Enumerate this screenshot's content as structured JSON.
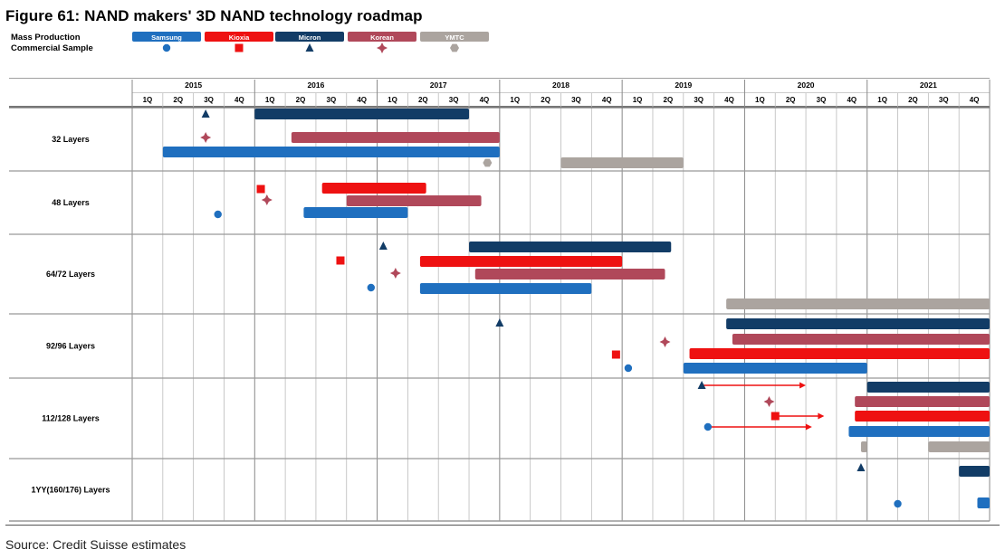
{
  "title": "Figure 61: NAND makers' 3D NAND technology roadmap",
  "source": "Source: Credit Suisse estimates",
  "legend": {
    "mass_production_label": "Mass Production",
    "commercial_sample_label": "Commercial Sample"
  },
  "chart_data": {
    "type": "gantt",
    "title": "Figure 61: NAND makers' 3D NAND technology roadmap",
    "x_axis": {
      "years": [
        "2015",
        "2016",
        "2017",
        "2018",
        "2019",
        "2020",
        "2021"
      ],
      "quarters": [
        "1Q",
        "2Q",
        "3Q",
        "4Q"
      ],
      "range": [
        "2015 1Q",
        "2021 4Q"
      ]
    },
    "makers": [
      {
        "name": "Samsung",
        "color": "#1f6fbf",
        "sample_marker": "circle"
      },
      {
        "name": "Kioxia",
        "color": "#ee1111",
        "sample_marker": "square"
      },
      {
        "name": "Micron",
        "color": "#123c66",
        "sample_marker": "triangle"
      },
      {
        "name": "Korean",
        "color": "#b0485a",
        "sample_marker": "diamond"
      },
      {
        "name": "YMTC",
        "color": "#aba49f",
        "sample_marker": "hexagon"
      }
    ],
    "categories": [
      "32 Layers",
      "48 Layers",
      "64/72 Layers",
      "92/96 Layers",
      "112/128 Layers",
      "1YY(160/176) Layers"
    ],
    "mass_production": [
      {
        "layer": "32 Layers",
        "maker": "Micron",
        "start": 2016.0,
        "end": 2017.75
      },
      {
        "layer": "32 Layers",
        "maker": "Korean",
        "start": 2016.3,
        "end": 2018.0
      },
      {
        "layer": "32 Layers",
        "maker": "Samsung",
        "start": 2015.25,
        "end": 2018.0
      },
      {
        "layer": "32 Layers",
        "maker": "YMTC",
        "start": 2018.5,
        "end": 2019.5
      },
      {
        "layer": "48 Layers",
        "maker": "Kioxia",
        "start": 2016.55,
        "end": 2017.4
      },
      {
        "layer": "48 Layers",
        "maker": "Korean",
        "start": 2016.75,
        "end": 2017.85
      },
      {
        "layer": "48 Layers",
        "maker": "Samsung",
        "start": 2016.4,
        "end": 2017.25
      },
      {
        "layer": "64/72 Layers",
        "maker": "Micron",
        "start": 2017.75,
        "end": 2019.4
      },
      {
        "layer": "64/72 Layers",
        "maker": "Kioxia",
        "start": 2017.35,
        "end": 2019.0
      },
      {
        "layer": "64/72 Layers",
        "maker": "Korean",
        "start": 2017.8,
        "end": 2019.35
      },
      {
        "layer": "64/72 Layers",
        "maker": "Samsung",
        "start": 2017.35,
        "end": 2018.75
      },
      {
        "layer": "64/72 Layers",
        "maker": "YMTC",
        "start": 2019.85,
        "end": 2022.0
      },
      {
        "layer": "92/96 Layers",
        "maker": "Micron",
        "start": 2019.85,
        "end": 2022.0
      },
      {
        "layer": "92/96 Layers",
        "maker": "Korean",
        "start": 2019.9,
        "end": 2022.0
      },
      {
        "layer": "92/96 Layers",
        "maker": "Kioxia",
        "start": 2019.55,
        "end": 2022.0
      },
      {
        "layer": "92/96 Layers",
        "maker": "Samsung",
        "start": 2019.5,
        "end": 2021.0
      },
      {
        "layer": "112/128 Layers",
        "maker": "Micron",
        "start": 2021.0,
        "end": 2022.0
      },
      {
        "layer": "112/128 Layers",
        "maker": "Korean",
        "start": 2020.9,
        "end": 2022.0
      },
      {
        "layer": "112/128 Layers",
        "maker": "Kioxia",
        "start": 2020.9,
        "end": 2022.0
      },
      {
        "layer": "112/128 Layers",
        "maker": "Samsung",
        "start": 2020.85,
        "end": 2022.0
      },
      {
        "layer": "112/128 Layers",
        "maker": "YMTC",
        "start": 2020.95,
        "end": 2021.0
      },
      {
        "layer": "112/128 Layers",
        "maker": "YMTC",
        "start": 2021.5,
        "end": 2022.0
      },
      {
        "layer": "1YY(160/176) Layers",
        "maker": "Micron",
        "start": 2021.75,
        "end": 2022.0
      },
      {
        "layer": "1YY(160/176) Layers",
        "maker": "Samsung",
        "start": 2021.9,
        "end": 2022.0
      }
    ],
    "commercial_samples": [
      {
        "layer": "32 Layers",
        "maker": "Micron",
        "time": 2015.6
      },
      {
        "layer": "32 Layers",
        "maker": "Korean",
        "time": 2015.6
      },
      {
        "layer": "32 Layers",
        "maker": "YMTC",
        "time": 2017.9
      },
      {
        "layer": "48 Layers",
        "maker": "Kioxia",
        "time": 2016.05
      },
      {
        "layer": "48 Layers",
        "maker": "Korean",
        "time": 2016.1
      },
      {
        "layer": "48 Layers",
        "maker": "Samsung",
        "time": 2015.7
      },
      {
        "layer": "64/72 Layers",
        "maker": "Micron",
        "time": 2017.05
      },
      {
        "layer": "64/72 Layers",
        "maker": "Kioxia",
        "time": 2016.7
      },
      {
        "layer": "64/72 Layers",
        "maker": "Korean",
        "time": 2017.15
      },
      {
        "layer": "64/72 Layers",
        "maker": "Samsung",
        "time": 2016.95
      },
      {
        "layer": "92/96 Layers",
        "maker": "Micron",
        "time": 2018.0
      },
      {
        "layer": "92/96 Layers",
        "maker": "Korean",
        "time": 2019.35
      },
      {
        "layer": "92/96 Layers",
        "maker": "Kioxia",
        "time": 2018.95
      },
      {
        "layer": "92/96 Layers",
        "maker": "Samsung",
        "time": 2019.05
      },
      {
        "layer": "112/128 Layers",
        "maker": "Micron",
        "time": 2019.65,
        "to": 2020.5
      },
      {
        "layer": "112/128 Layers",
        "maker": "Korean",
        "time": 2020.2
      },
      {
        "layer": "112/128 Layers",
        "maker": "Kioxia",
        "time": 2020.25,
        "to": 2020.65
      },
      {
        "layer": "112/128 Layers",
        "maker": "Samsung",
        "time": 2019.7,
        "to": 2020.55
      },
      {
        "layer": "1YY(160/176) Layers",
        "maker": "Micron",
        "time": 2020.95
      },
      {
        "layer": "1YY(160/176) Layers",
        "maker": "Samsung",
        "time": 2021.25
      }
    ]
  }
}
